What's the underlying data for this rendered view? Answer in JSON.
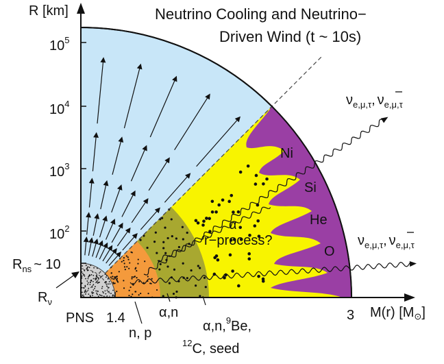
{
  "title_line1": "Neutrino Cooling and Neutrino−",
  "title_line2": "Driven Wind  (t ~ 10s)",
  "y_axis_label": "R [km]",
  "x_axis_label": "M(r) [M",
  "x_axis_label_end": "]",
  "y_ticks": [
    {
      "base": "10",
      "exp": "2"
    },
    {
      "base": "10",
      "exp": "3"
    },
    {
      "base": "10",
      "exp": "4"
    },
    {
      "base": "10",
      "exp": "5"
    }
  ],
  "rns_label": "R",
  "rns_sub": "ns",
  "rns_value": "~ 10",
  "rnu_label": "R",
  "rnu_sub": "ν",
  "pns_label": "PNS",
  "mass_14": "1.4",
  "mass_3": "3",
  "np_label": "n, p",
  "alpha_n_label": "α,n",
  "seed_line1_pre": "α,n,",
  "seed_line1_sup": "9",
  "seed_line1_post": "Be,",
  "seed_line2_sup": "12",
  "seed_line2_post": "C, seed",
  "alpha_label": "α",
  "rprocess_label": "r−process?",
  "elements": [
    "Ni",
    "Si",
    "He",
    "O"
  ],
  "neutrino_label": "ν",
  "neutrino_sub": "e,μ,τ",
  "neutrino_sep": ",",
  "colors": {
    "wind": "#c8e6f8",
    "envelope": "#9a3fa4",
    "yellow": "#f8f400",
    "olive": "#a8a830",
    "orange": "#f49a3c",
    "pns": "#d0d0d0"
  }
}
